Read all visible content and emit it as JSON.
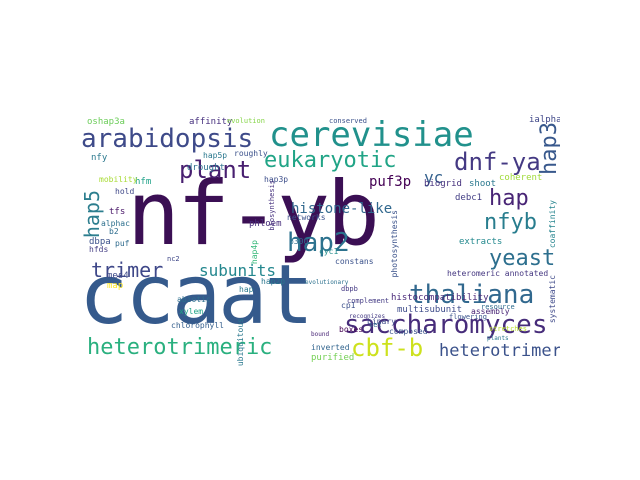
{
  "cloud": {
    "words": [
      {
        "text": "nf-yb",
        "color": "#3b0f54"
      },
      {
        "text": "ccaat",
        "color": "#355a8c"
      },
      {
        "text": "cerevisiae",
        "color": "#21918c"
      },
      {
        "text": "arabidopsis",
        "color": "#3e4a89"
      },
      {
        "text": "saccharomyces",
        "color": "#472c7a"
      },
      {
        "text": "thaliana",
        "color": "#31688e"
      },
      {
        "text": "heterotrimeric",
        "color": "#2ab07f"
      },
      {
        "text": "cbf-b",
        "color": "#cde11d"
      },
      {
        "text": "heterotrimer",
        "color": "#3b528b"
      },
      {
        "text": "eukaryotic",
        "color": "#20a486"
      },
      {
        "text": "dnf-ya",
        "color": "#443983"
      },
      {
        "text": "hap2",
        "color": "#2c728e"
      },
      {
        "text": "hap3",
        "color": "#38588c"
      },
      {
        "text": "plant",
        "color": "#481f70"
      },
      {
        "text": "hap5",
        "color": "#2c7e8e"
      },
      {
        "text": "hap",
        "color": "#482475"
      },
      {
        "text": "nfyb",
        "color": "#287d8e"
      },
      {
        "text": "yeast",
        "color": "#2d6f8e"
      },
      {
        "text": "trimer",
        "color": "#3f4889"
      },
      {
        "text": "subunits",
        "color": "#24878e"
      },
      {
        "text": "histone-like",
        "color": "#31688e"
      },
      {
        "text": "puf3p",
        "color": "#440154"
      },
      {
        "text": "yc",
        "color": "#34618d"
      },
      {
        "text": "biogrid",
        "color": "#46327e"
      },
      {
        "text": "heteromeric annotated",
        "color": "#453781"
      },
      {
        "text": "histocompatibility",
        "color": "#482878"
      },
      {
        "text": "multisubunit",
        "color": "#3e4c8a"
      },
      {
        "text": "purified",
        "color": "#75d054"
      },
      {
        "text": "inverted",
        "color": "#32658e"
      },
      {
        "text": "complement",
        "color": "#443b84"
      },
      {
        "text": "binary",
        "color": "#3e4989"
      },
      {
        "text": "composed",
        "color": "#3a538b"
      },
      {
        "text": "shoot",
        "color": "#2a788e"
      },
      {
        "text": "coherent",
        "color": "#a0da39"
      },
      {
        "text": "extracts",
        "color": "#23898e"
      },
      {
        "text": "dbpa",
        "color": "#3b518b"
      },
      {
        "text": "tfs",
        "color": "#481668"
      },
      {
        "text": "hfm",
        "color": "#1fa188"
      },
      {
        "text": "mobility",
        "color": "#a8db34"
      },
      {
        "text": "drought",
        "color": "#2d708e"
      },
      {
        "text": "affinity",
        "color": "#46307e"
      },
      {
        "text": "oshap3a",
        "color": "#6ccd5a"
      },
      {
        "text": "ialpha",
        "color": "#3f4788"
      },
      {
        "text": "hap3p",
        "color": "#3d4e8a"
      },
      {
        "text": "hap2p",
        "color": "#2a768e"
      },
      {
        "text": "hap4p",
        "color": "#35b779"
      },
      {
        "text": "networks",
        "color": "#3b528b"
      },
      {
        "text": "phloem",
        "color": "#472d7b"
      },
      {
        "text": "p300",
        "color": "#2e6e8e"
      },
      {
        "text": "cyc1",
        "color": "#228d8d"
      },
      {
        "text": "constans",
        "color": "#3b528b"
      },
      {
        "text": "debc1",
        "color": "#433e85"
      },
      {
        "text": "cp1",
        "color": "#3c508b"
      },
      {
        "text": "abiotic",
        "color": "#2e6f8e"
      },
      {
        "text": "xylem",
        "color": "#20a486"
      },
      {
        "text": "chlorophyll",
        "color": "#355f8d"
      },
      {
        "text": "map",
        "color": "#fde725"
      },
      {
        "text": "mes4",
        "color": "#3e4a89"
      },
      {
        "text": "alphac",
        "color": "#2d708e"
      },
      {
        "text": "hfds",
        "color": "#433d84"
      },
      {
        "text": "puf",
        "color": "#2f6b8e"
      },
      {
        "text": "nfy",
        "color": "#2a788e"
      },
      {
        "text": "hap5p",
        "color": "#2a788e"
      },
      {
        "text": "roughly",
        "color": "#3b518b"
      },
      {
        "text": "recognizes",
        "color": "#443a83"
      },
      {
        "text": "boxes",
        "color": "#440154"
      },
      {
        "text": "set",
        "color": "#31688e"
      },
      {
        "text": "flowering",
        "color": "#3a548c"
      },
      {
        "text": "assembly",
        "color": "#482475"
      },
      {
        "text": "systematic",
        "color": "#3e4989"
      },
      {
        "text": "resource",
        "color": "#2f6c8e"
      },
      {
        "text": "coaffinity",
        "color": "#25848e"
      },
      {
        "text": "bound",
        "color": "#482576"
      },
      {
        "text": "evolutionary",
        "color": "#2c718e"
      },
      {
        "text": "dbpb",
        "color": "#443983"
      },
      {
        "text": "nc2",
        "color": "#3f4788"
      },
      {
        "text": "photosynthesis",
        "color": "#3b528b"
      },
      {
        "text": "ubiquitous",
        "color": "#2a788e"
      },
      {
        "text": "biosynthesis",
        "color": "#46317e"
      },
      {
        "text": "hap",
        "color": "#297a8e"
      },
      {
        "text": "plants",
        "color": "#2a788e"
      },
      {
        "text": "conserved",
        "color": "#3b518b"
      },
      {
        "text": "evolution",
        "color": "#86d549"
      },
      {
        "text": "hold",
        "color": "#3f4788"
      },
      {
        "text": "b2",
        "color": "#2e6d8e"
      },
      {
        "text": "stretches",
        "color": "#b8de29"
      }
    ]
  }
}
